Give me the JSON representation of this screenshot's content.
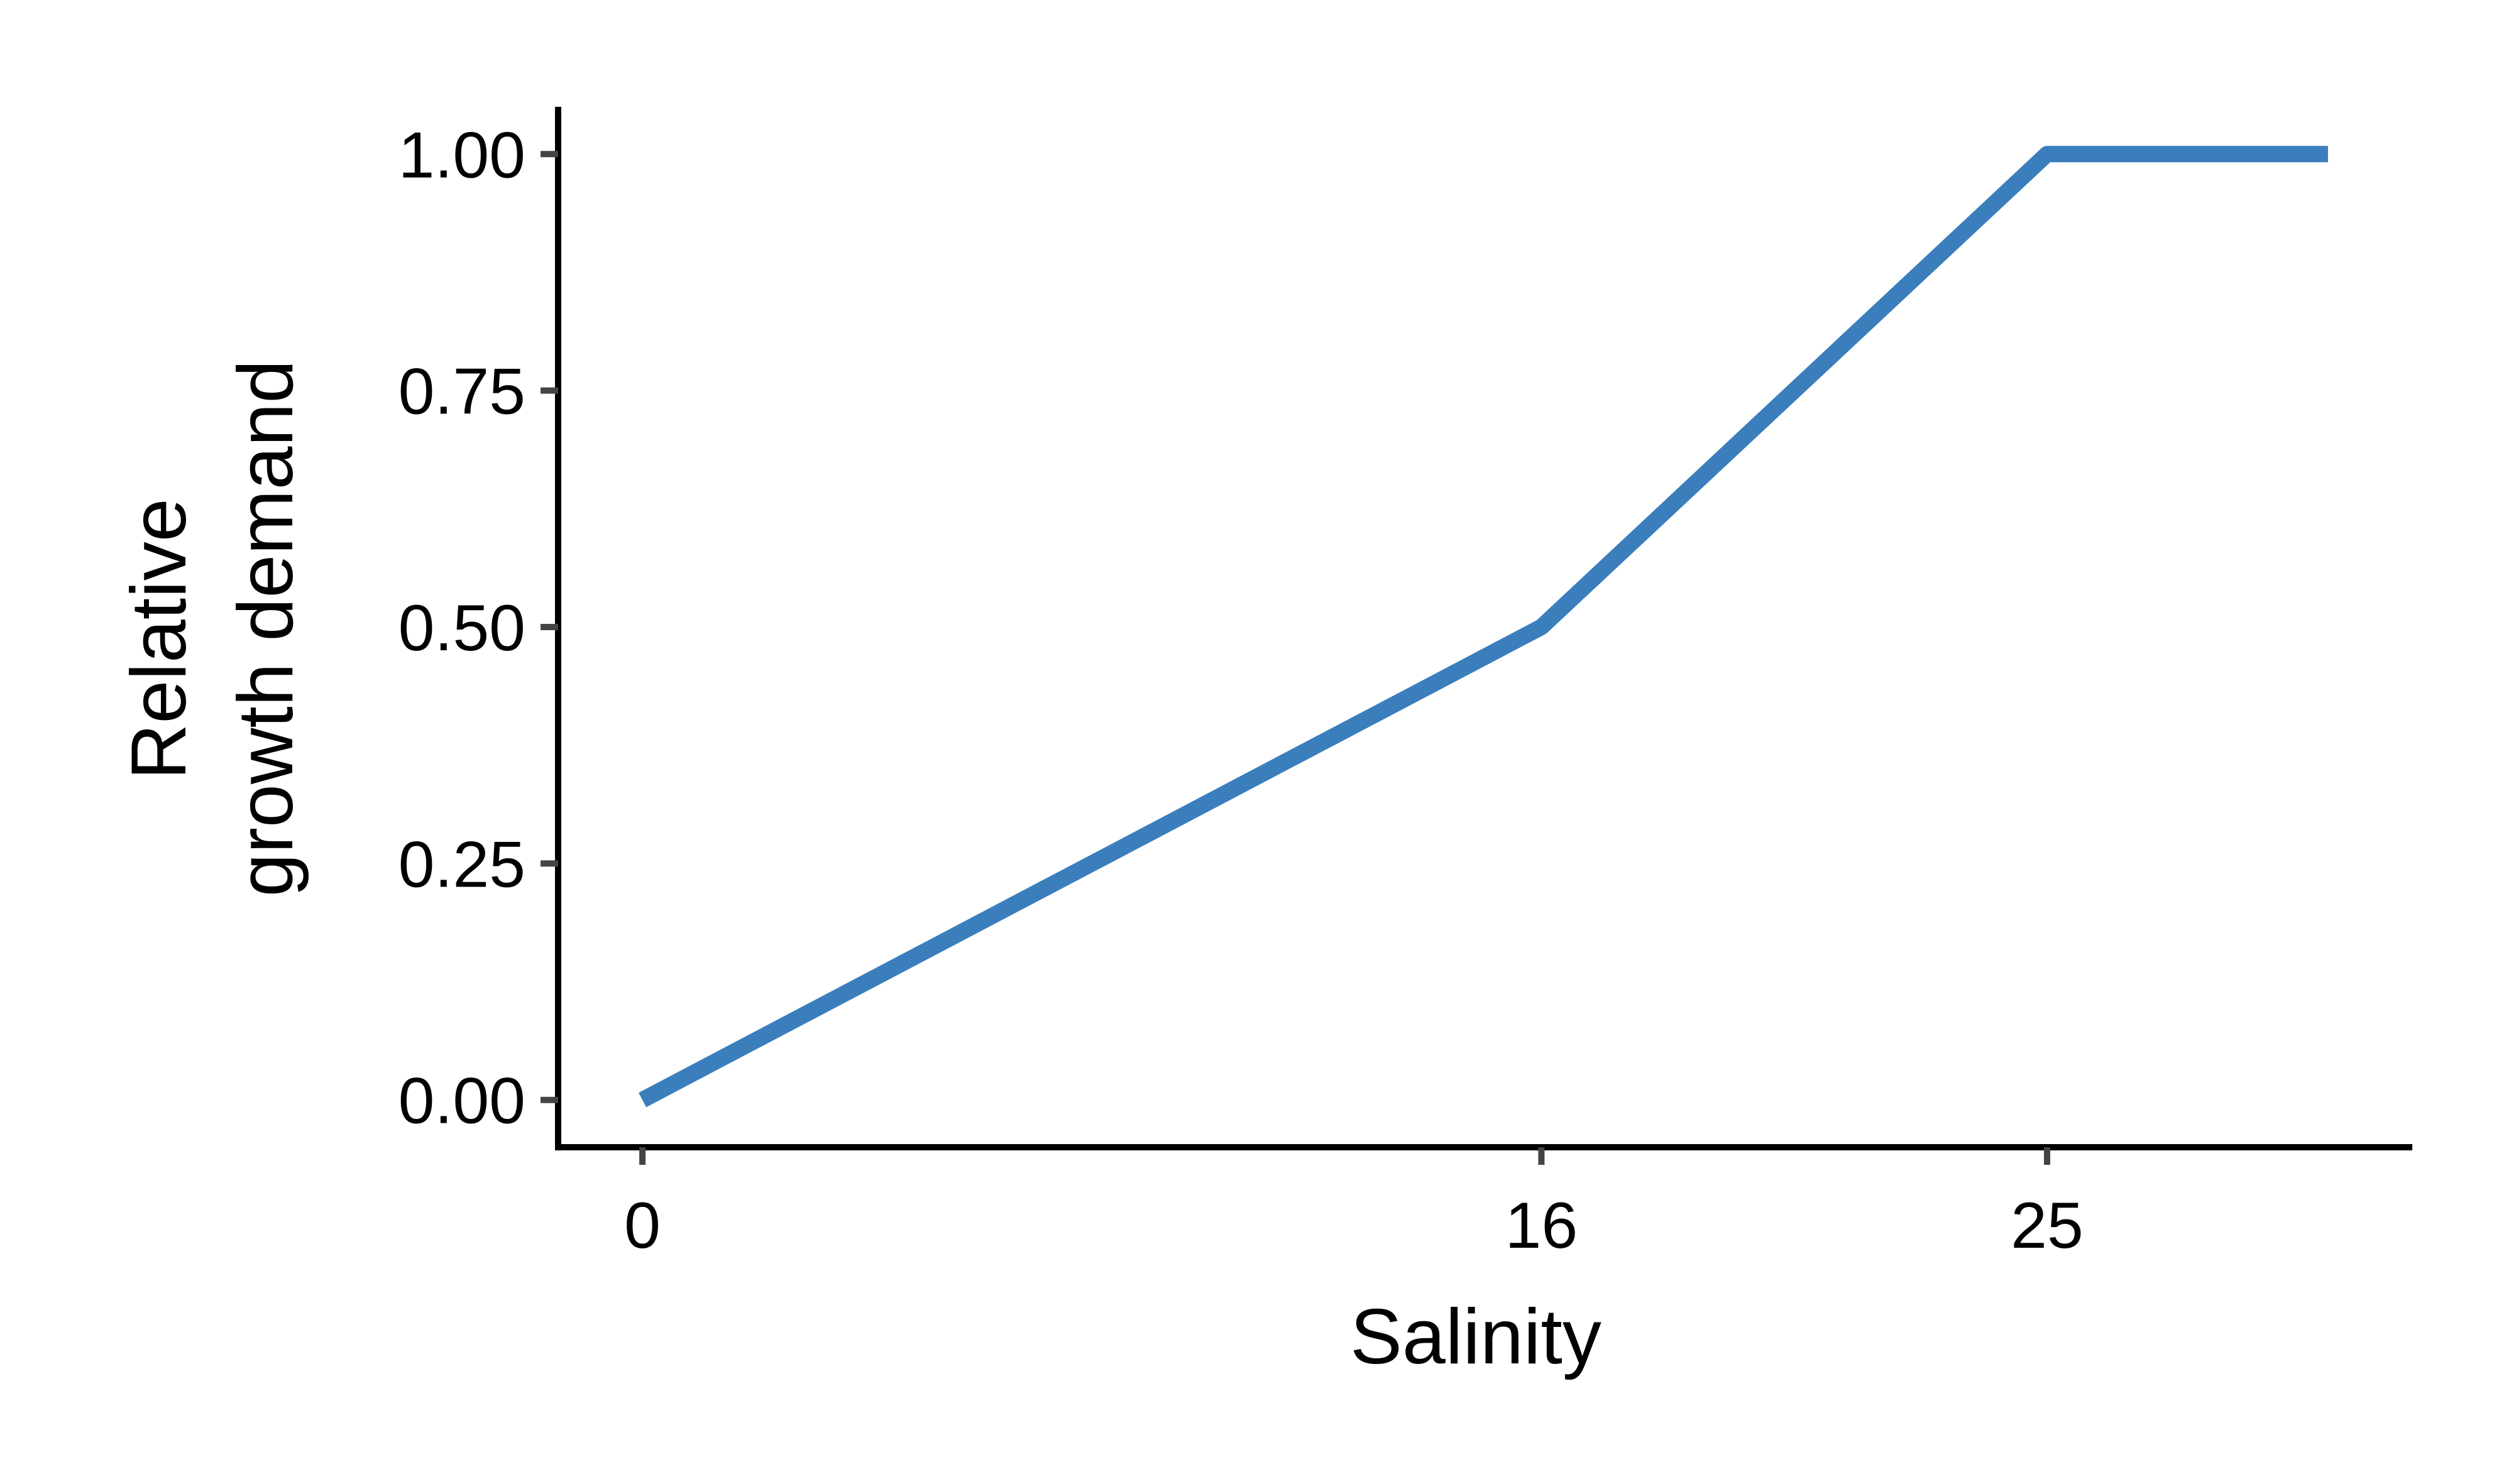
{
  "chart_data": {
    "type": "line",
    "xlabel": "Salinity",
    "ylabel_lines": [
      "Relative",
      "growth demand"
    ],
    "x_ticks": [
      0,
      16,
      25
    ],
    "x_tick_labels": [
      "0",
      "16",
      "25"
    ],
    "y_ticks": [
      0,
      0.25,
      0.5,
      0.75,
      1.0
    ],
    "y_tick_labels": [
      "0.00",
      "0.25",
      "0.50",
      "0.75",
      "1.00"
    ],
    "xlim": [
      -1.5,
      31.5
    ],
    "ylim": [
      -0.05,
      1.05
    ],
    "grid": false,
    "legend": "none",
    "series": [
      {
        "x": [
          0,
          16,
          25,
          30
        ],
        "y": [
          0,
          0.5,
          1.0,
          1.0
        ]
      }
    ],
    "colors": {
      "line": "#3A7EBC",
      "axis": "#000000",
      "tick": "#444444"
    }
  }
}
